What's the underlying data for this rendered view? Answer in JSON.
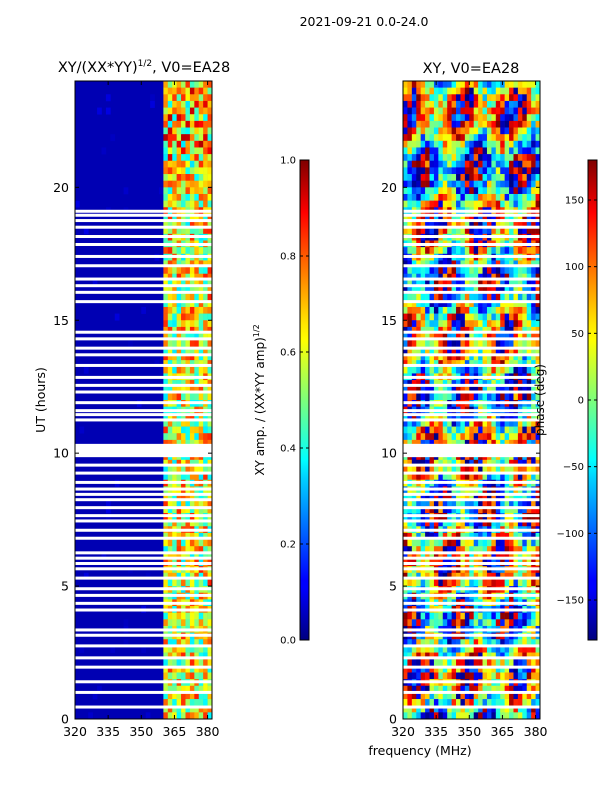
{
  "suptitle": "2021-09-21 0.0-24.0",
  "shared": {
    "xlabel": "frequency (MHz)",
    "ylabel": "UT (hours)",
    "x_ticks": [
      320,
      335,
      350,
      365,
      380
    ],
    "xlim": [
      320,
      382
    ],
    "y_ticks": [
      0,
      5,
      10,
      15,
      20
    ],
    "ylim": [
      0,
      24
    ],
    "colormap": "jet"
  },
  "chart_data": [
    {
      "type": "heatmap",
      "title_main": "XY/(XX*YY)",
      "title_sup": "1/2",
      "title_rest": ", V0=EA28",
      "xlabel": "",
      "ylabel": "UT (hours)",
      "xlim": [
        320,
        382
      ],
      "ylim": [
        0,
        24
      ],
      "colorbar": {
        "label_main": "XY amp. / (XX*YY amp)",
        "label_sup": "1/2",
        "range": [
          0.0,
          1.0
        ],
        "ticks": [
          0.0,
          0.2,
          0.4,
          0.6,
          0.8,
          1.0
        ],
        "tick_labels": [
          "0.0",
          "0.2",
          "0.4",
          "0.6",
          "0.8",
          "1.0"
        ]
      },
      "bright_channel_band_mhz": [
        361,
        382
      ],
      "background_value": 0.05,
      "band_value_range": [
        0.35,
        0.85
      ]
    },
    {
      "type": "heatmap",
      "title_main": "XY, V0=EA28",
      "xlabel": "frequency (MHz)",
      "ylabel": "",
      "xlim": [
        320,
        382
      ],
      "ylim": [
        0,
        24
      ],
      "colorbar": {
        "label": "phase (deg)",
        "range": [
          -180,
          180
        ],
        "ticks": [
          -150,
          -100,
          -50,
          0,
          50,
          100,
          150
        ],
        "tick_labels": [
          "−150",
          "−100",
          "−50",
          "0",
          "50",
          "100",
          "150"
        ]
      }
    }
  ],
  "flagged_ut_hours": [
    0.45,
    1.0,
    1.4,
    1.95,
    2.3,
    2.75,
    3.15,
    3.35,
    4.1,
    4.35,
    4.65,
    4.9,
    5.3,
    5.65,
    5.85,
    6.05,
    6.25,
    6.8,
    7.1,
    7.45,
    7.65,
    7.95,
    8.25,
    8.45,
    8.65,
    8.9,
    9.25,
    9.55,
    10.05,
    10.15,
    10.25,
    11.25,
    11.45,
    11.6,
    11.9,
    12.3,
    12.55,
    12.85,
    13.3,
    13.7,
    13.95,
    14.3,
    14.55,
    15.7,
    16.05,
    16.3,
    16.55,
    17.05,
    17.4,
    17.85,
    18.15,
    18.5,
    18.75,
    18.95,
    19.1
  ]
}
